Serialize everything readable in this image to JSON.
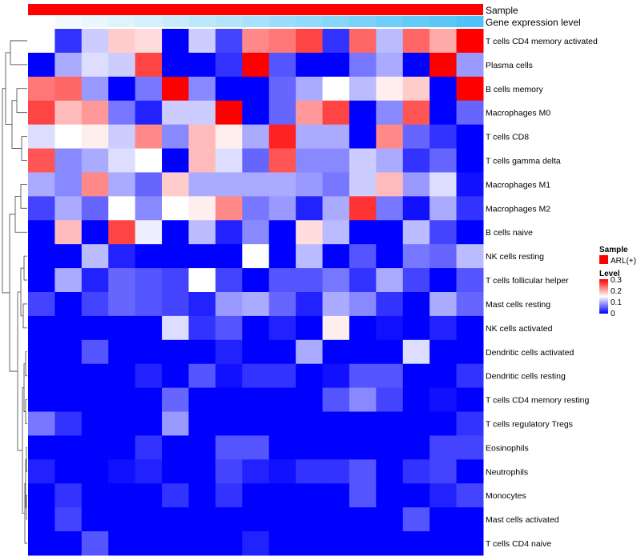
{
  "chart_data": {
    "type": "heatmap",
    "annotation_rows": [
      {
        "label": "Sample"
      },
      {
        "label": "Gene expression level"
      }
    ],
    "rows": [
      {
        "label": "T cells CD4 memory activated",
        "values": [
          0.15,
          0.03,
          0.12,
          0.18,
          0.17,
          0.0,
          0.12,
          0.04,
          0.22,
          0.23,
          0.26,
          0.03,
          0.24,
          0.11,
          0.24,
          0.2,
          0.3
        ]
      },
      {
        "label": "Plasma cells",
        "values": [
          0.0,
          0.1,
          0.13,
          0.12,
          0.26,
          0.0,
          0.0,
          0.03,
          0.3,
          0.05,
          0.0,
          0.0,
          0.07,
          0.1,
          0.0,
          0.3,
          0.09
        ]
      },
      {
        "label": "B cells memory",
        "values": [
          0.23,
          0.24,
          0.09,
          0.0,
          0.07,
          0.3,
          0.08,
          0.0,
          0.0,
          0.06,
          0.1,
          0.15,
          0.11,
          0.16,
          0.18,
          0.0,
          0.3
        ]
      },
      {
        "label": "Macrophages M0",
        "values": [
          0.26,
          0.19,
          0.21,
          0.07,
          0.02,
          0.12,
          0.12,
          0.3,
          0.0,
          0.06,
          0.21,
          0.26,
          0.0,
          0.08,
          0.25,
          0.0,
          0.06
        ]
      },
      {
        "label": "T cells CD8",
        "values": [
          0.13,
          0.15,
          0.16,
          0.12,
          0.22,
          0.08,
          0.19,
          0.16,
          0.1,
          0.28,
          0.1,
          0.1,
          0.0,
          0.22,
          0.06,
          0.03,
          0.0
        ]
      },
      {
        "label": "T cells gamma delta",
        "values": [
          0.25,
          0.08,
          0.1,
          0.13,
          0.15,
          0.0,
          0.19,
          0.13,
          0.06,
          0.25,
          0.08,
          0.08,
          0.12,
          0.1,
          0.03,
          0.06,
          0.0
        ]
      },
      {
        "label": "Macrophages M1",
        "values": [
          0.1,
          0.08,
          0.22,
          0.1,
          0.06,
          0.18,
          0.1,
          0.1,
          0.1,
          0.1,
          0.09,
          0.07,
          0.12,
          0.19,
          0.09,
          0.13,
          0.01
        ]
      },
      {
        "label": "Macrophages M2",
        "values": [
          0.04,
          0.1,
          0.06,
          0.15,
          0.08,
          0.15,
          0.16,
          0.22,
          0.07,
          0.09,
          0.02,
          0.1,
          0.27,
          0.07,
          0.01,
          0.1,
          0.03
        ]
      },
      {
        "label": "B cells naive",
        "values": [
          0.0,
          0.19,
          0.0,
          0.26,
          0.14,
          0.0,
          0.11,
          0.02,
          0.08,
          0.0,
          0.17,
          0.11,
          0.0,
          0.0,
          0.11,
          0.04,
          0.0
        ]
      },
      {
        "label": "NK cells resting",
        "values": [
          0.0,
          0.0,
          0.11,
          0.02,
          0.0,
          0.0,
          0.0,
          0.0,
          0.15,
          0.0,
          0.11,
          0.0,
          0.05,
          0.0,
          0.07,
          0.06,
          0.11
        ]
      },
      {
        "label": "T cells follicular helper",
        "values": [
          0.0,
          0.1,
          0.02,
          0.06,
          0.05,
          0.04,
          0.15,
          0.04,
          0.0,
          0.05,
          0.05,
          0.07,
          0.03,
          0.1,
          0.04,
          0.0,
          0.05
        ]
      },
      {
        "label": "Mast cells resting",
        "values": [
          0.04,
          0.0,
          0.04,
          0.06,
          0.05,
          0.04,
          0.02,
          0.09,
          0.1,
          0.06,
          0.02,
          0.1,
          0.08,
          0.03,
          0.0,
          0.1,
          0.06
        ]
      },
      {
        "label": "NK cells activated",
        "values": [
          0.0,
          0.0,
          0.0,
          0.0,
          0.0,
          0.13,
          0.03,
          0.05,
          0.0,
          0.02,
          0.0,
          0.16,
          0.0,
          0.01,
          0.0,
          0.02,
          0.0
        ]
      },
      {
        "label": "Dendritic cells activated",
        "values": [
          0.0,
          0.0,
          0.05,
          0.0,
          0.0,
          0.0,
          0.0,
          0.02,
          0.0,
          0.0,
          0.1,
          0.0,
          0.0,
          0.0,
          0.13,
          0.0,
          0.0
        ]
      },
      {
        "label": "Dendritic cells resting",
        "values": [
          0.0,
          0.0,
          0.0,
          0.0,
          0.02,
          0.0,
          0.05,
          0.01,
          0.03,
          0.03,
          0.0,
          0.01,
          0.05,
          0.05,
          0.0,
          0.0,
          0.03
        ]
      },
      {
        "label": "T cells CD4 memory resting",
        "values": [
          0.0,
          0.0,
          0.0,
          0.0,
          0.0,
          0.06,
          0.0,
          0.0,
          0.0,
          0.0,
          0.0,
          0.05,
          0.08,
          0.04,
          0.0,
          0.01,
          0.0
        ]
      },
      {
        "label": "T cells regulatory  Tregs",
        "values": [
          0.07,
          0.03,
          0.0,
          0.0,
          0.0,
          0.09,
          0.0,
          0.0,
          0.0,
          0.0,
          0.0,
          0.0,
          0.0,
          0.0,
          0.0,
          0.0,
          0.03
        ]
      },
      {
        "label": "Eosinophils",
        "values": [
          0.0,
          0.0,
          0.0,
          0.0,
          0.03,
          0.0,
          0.0,
          0.05,
          0.05,
          0.0,
          0.0,
          0.0,
          0.0,
          0.0,
          0.0,
          0.04,
          0.04
        ]
      },
      {
        "label": "Neutrophils",
        "values": [
          0.02,
          0.0,
          0.0,
          0.01,
          0.02,
          0.0,
          0.0,
          0.04,
          0.02,
          0.01,
          0.03,
          0.03,
          0.05,
          0.0,
          0.03,
          0.04,
          0.0
        ]
      },
      {
        "label": "Monocytes",
        "values": [
          0.0,
          0.03,
          0.0,
          0.0,
          0.0,
          0.03,
          0.0,
          0.03,
          0.0,
          0.0,
          0.0,
          0.0,
          0.05,
          0.0,
          0.0,
          0.02,
          0.04
        ]
      },
      {
        "label": "Mast cells activated",
        "values": [
          0.0,
          0.04,
          0.0,
          0.0,
          0.0,
          0.0,
          0.0,
          0.0,
          0.0,
          0.0,
          0.0,
          0.0,
          0.0,
          0.0,
          0.05,
          0.0,
          0.0
        ]
      },
      {
        "label": "T cells CD4 naive",
        "values": [
          0.0,
          0.0,
          0.05,
          0.0,
          0.0,
          0.0,
          0.0,
          0.0,
          0.02,
          0.0,
          0.0,
          0.0,
          0.0,
          0.0,
          0.0,
          0.0,
          0.0
        ]
      }
    ],
    "sample_annotation": {
      "group": "ARL(+)",
      "color": "#ff0000",
      "n_columns": 17
    },
    "expression_annotation": {
      "values": [
        0.0,
        0.06,
        0.12,
        0.19,
        0.25,
        0.31,
        0.38,
        0.44,
        0.5,
        0.56,
        0.62,
        0.69,
        0.75,
        0.81,
        0.88,
        0.94,
        1.0
      ],
      "low_color": "#ffffff",
      "high_color": "#4fc3f7"
    },
    "color_scale": {
      "low": "#0000ff",
      "mid": "#ffffff",
      "high": "#ff0000",
      "min": 0,
      "mid_value": 0.15,
      "max": 0.3
    },
    "legend": {
      "sample_title": "Sample",
      "sample_entry": "ARL(+)",
      "level_title": "Level",
      "level_ticks": [
        "0.3",
        "0.2",
        "0.1",
        "0"
      ],
      "position": "right"
    },
    "dendrogram": "row-clustering"
  }
}
